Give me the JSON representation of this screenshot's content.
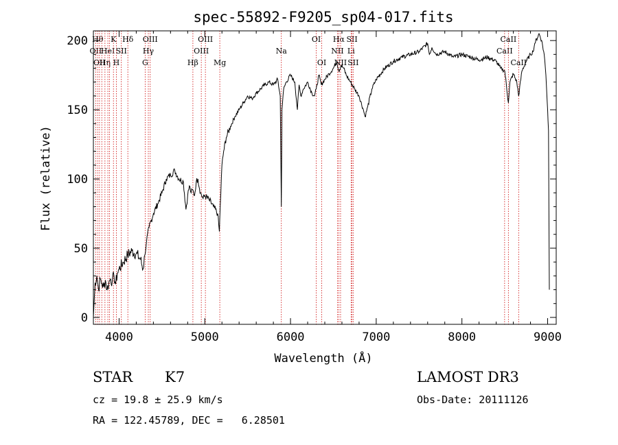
{
  "chart_data": {
    "type": "line",
    "title": "spec-55892-F9205_sp04-017.fits",
    "xlabel": "Wavelength (Å)",
    "ylabel": "Flux (relative)",
    "xlim": [
      3700,
      9100
    ],
    "ylim": [
      -5,
      207
    ],
    "x_ticks": [
      4000,
      5000,
      6000,
      7000,
      8000,
      9000
    ],
    "y_ticks": [
      0,
      50,
      100,
      150,
      200
    ],
    "grid": false,
    "line_color": "#000000",
    "marker_color": "#cc0000",
    "series": [
      {
        "x": [
          3700,
          3720,
          3740,
          3760,
          3780,
          3800,
          3820,
          3840,
          3860,
          3880,
          3900,
          3920,
          3940,
          3960,
          3980,
          4000,
          4050,
          4100,
          4150,
          4200,
          4250,
          4280,
          4300,
          4320,
          4350,
          4400,
          4450,
          4500,
          4550,
          4600,
          4650,
          4700,
          4750,
          4780,
          4800,
          4820,
          4840,
          4860,
          4880,
          4900,
          4920,
          4950,
          4980,
          5000,
          5050,
          5100,
          5150,
          5170,
          5180,
          5200,
          5220,
          5250,
          5300,
          5350,
          5400,
          5450,
          5500,
          5550,
          5600,
          5650,
          5700,
          5750,
          5800,
          5850,
          5880,
          5893,
          5900,
          5920,
          5950,
          6000,
          6050,
          6080,
          6100,
          6120,
          6150,
          6200,
          6250,
          6280,
          6300,
          6330,
          6360,
          6400,
          6450,
          6500,
          6540,
          6563,
          6590,
          6620,
          6650,
          6700,
          6750,
          6800,
          6850,
          6870,
          6900,
          6950,
          7000,
          7100,
          7200,
          7300,
          7400,
          7500,
          7600,
          7620,
          7650,
          7700,
          7800,
          7900,
          8000,
          8100,
          8200,
          8300,
          8400,
          8450,
          8500,
          8542,
          8560,
          8600,
          8640,
          8662,
          8700,
          8750,
          8800,
          8830,
          8850,
          8900,
          8930,
          8960,
          8980,
          9000,
          9010,
          9020
        ],
        "y": [
          0,
          25,
          30,
          20,
          28,
          24,
          22,
          27,
          20,
          25,
          28,
          26,
          30,
          24,
          32,
          35,
          40,
          45,
          48,
          46,
          42,
          35,
          45,
          55,
          65,
          75,
          82,
          90,
          100,
          103,
          106,
          100,
          98,
          78,
          88,
          95,
          90,
          92,
          88,
          98,
          100,
          90,
          86,
          88,
          85,
          80,
          75,
          62,
          80,
          110,
          120,
          130,
          138,
          145,
          150,
          155,
          160,
          158,
          162,
          165,
          168,
          170,
          168,
          172,
          160,
          80,
          150,
          165,
          170,
          175,
          170,
          150,
          168,
          160,
          165,
          170,
          162,
          160,
          165,
          175,
          168,
          172,
          176,
          180,
          185,
          178,
          182,
          180,
          175,
          170,
          165,
          160,
          150,
          145,
          152,
          165,
          172,
          180,
          185,
          188,
          190,
          192,
          198,
          190,
          195,
          190,
          192,
          188,
          190,
          188,
          186,
          188,
          185,
          180,
          178,
          155,
          170,
          176,
          170,
          160,
          178,
          185,
          190,
          192,
          198,
          205,
          200,
          190,
          175,
          150,
          135,
          20
        ]
      }
    ],
    "line_markers": [
      {
        "x": 3727,
        "label": "OII",
        "row": 2
      },
      {
        "x": 3750,
        "label": "Hθ",
        "row": 1
      },
      {
        "x": 3771,
        "label": "OII",
        "row": 3
      },
      {
        "x": 3798,
        "label": "",
        "row": 0
      },
      {
        "x": 3835,
        "label": "Hη",
        "row": 3
      },
      {
        "x": 3869,
        "label": "HeI",
        "row": 2
      },
      {
        "x": 3889,
        "label": "",
        "row": 0
      },
      {
        "x": 3934,
        "label": "K",
        "row": 1
      },
      {
        "x": 3968,
        "label": "H",
        "row": 3
      },
      {
        "x": 4026,
        "label": "SII",
        "row": 2
      },
      {
        "x": 4102,
        "label": "Hδ",
        "row": 1
      },
      {
        "x": 4304,
        "label": "G",
        "row": 3
      },
      {
        "x": 4341,
        "label": "Hγ",
        "row": 2
      },
      {
        "x": 4363,
        "label": "OIII",
        "row": 1
      },
      {
        "x": 4861,
        "label": "Hβ",
        "row": 3
      },
      {
        "x": 4959,
        "label": "OIII",
        "row": 2
      },
      {
        "x": 5007,
        "label": "OIII",
        "row": 1
      },
      {
        "x": 5175,
        "label": "Mg",
        "row": 3
      },
      {
        "x": 5893,
        "label": "Na",
        "row": 2
      },
      {
        "x": 6300,
        "label": "OI",
        "row": 1
      },
      {
        "x": 6364,
        "label": "OI",
        "row": 3
      },
      {
        "x": 6548,
        "label": "NII",
        "row": 2
      },
      {
        "x": 6563,
        "label": "Hα",
        "row": 1
      },
      {
        "x": 6584,
        "label": "NII",
        "row": 3
      },
      {
        "x": 6707,
        "label": "Li",
        "row": 2
      },
      {
        "x": 6717,
        "label": "SII",
        "row": 1
      },
      {
        "x": 6731,
        "label": "SII",
        "row": 3
      },
      {
        "x": 8498,
        "label": "CaII",
        "row": 2
      },
      {
        "x": 8542,
        "label": "CaII",
        "row": 1
      },
      {
        "x": 8662,
        "label": "CaII",
        "row": 3
      }
    ]
  },
  "info": {
    "class_label": "STAR",
    "subclass": "K7",
    "survey": "LAMOST DR3",
    "cz_line": "cz = 19.8 ± 25.9 km/s",
    "obs_date": "Obs-Date: 20111126",
    "coords": "RA = 122.45789, DEC =   6.28501"
  }
}
